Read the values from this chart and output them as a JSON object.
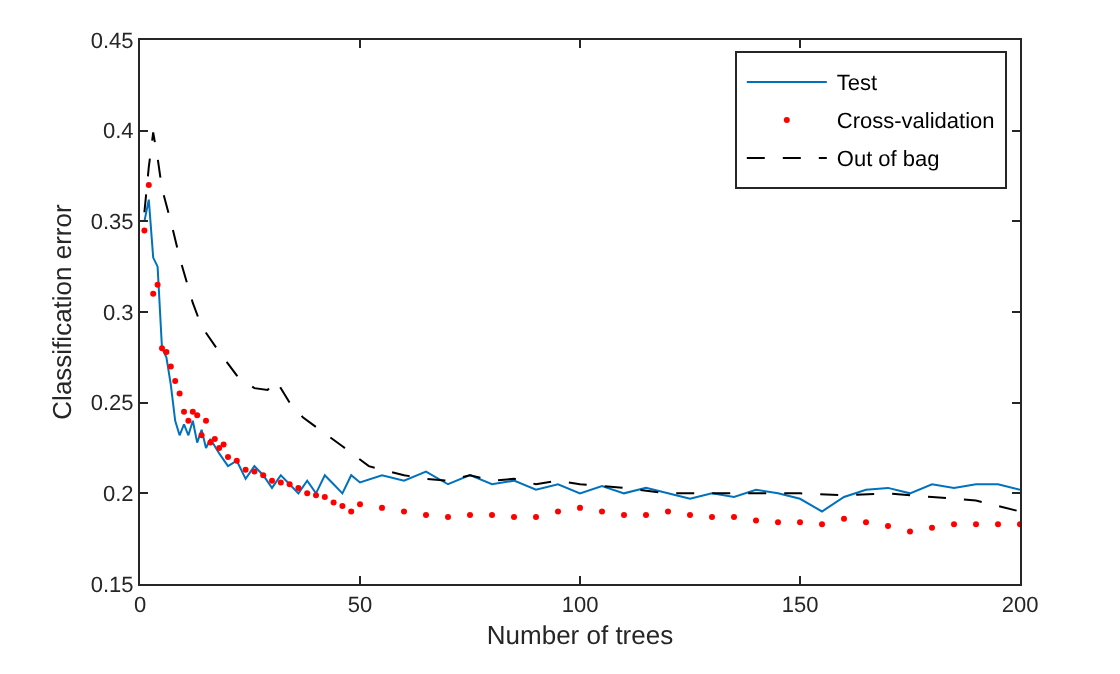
{
  "chart_data": {
    "type": "line",
    "xlabel": "Number of trees",
    "ylabel": "Classification error",
    "xlim": [
      0,
      200
    ],
    "xticks": [
      0,
      50,
      100,
      150,
      200
    ],
    "ylim": [
      0.15,
      0.45
    ],
    "yticks": [
      0.15,
      0.2,
      0.25,
      0.3,
      0.35,
      0.4,
      0.45
    ],
    "legend": "top right",
    "series": [
      {
        "name": "Test",
        "color": "#0072bd",
        "line_style": "solid",
        "marker": "none",
        "x": [
          1,
          2,
          3,
          4,
          5,
          6,
          7,
          8,
          9,
          10,
          11,
          12,
          13,
          14,
          15,
          16,
          18,
          20,
          22,
          24,
          26,
          28,
          30,
          32,
          34,
          36,
          38,
          40,
          42,
          44,
          46,
          48,
          50,
          55,
          60,
          65,
          70,
          75,
          80,
          85,
          90,
          95,
          100,
          105,
          110,
          115,
          120,
          125,
          130,
          135,
          140,
          145,
          150,
          155,
          160,
          165,
          170,
          175,
          180,
          185,
          190,
          195,
          200
        ],
        "values": [
          0.35,
          0.362,
          0.33,
          0.325,
          0.28,
          0.275,
          0.26,
          0.24,
          0.232,
          0.238,
          0.232,
          0.24,
          0.228,
          0.235,
          0.225,
          0.23,
          0.222,
          0.215,
          0.218,
          0.208,
          0.215,
          0.21,
          0.203,
          0.21,
          0.205,
          0.2,
          0.207,
          0.2,
          0.21,
          0.205,
          0.2,
          0.21,
          0.206,
          0.21,
          0.207,
          0.212,
          0.205,
          0.21,
          0.205,
          0.207,
          0.202,
          0.205,
          0.2,
          0.204,
          0.2,
          0.203,
          0.2,
          0.197,
          0.2,
          0.198,
          0.202,
          0.2,
          0.197,
          0.19,
          0.198,
          0.202,
          0.203,
          0.2,
          0.205,
          0.203,
          0.205,
          0.205,
          0.202
        ]
      },
      {
        "name": "Cross-validation",
        "color": "#ff0000",
        "type": "scatter",
        "marker": "circle",
        "x": [
          1,
          2,
          3,
          4,
          5,
          6,
          7,
          8,
          9,
          10,
          11,
          12,
          13,
          14,
          15,
          16,
          17,
          18,
          19,
          20,
          22,
          24,
          26,
          28,
          30,
          32,
          34,
          36,
          38,
          40,
          42,
          44,
          46,
          48,
          50,
          55,
          60,
          65,
          70,
          75,
          80,
          85,
          90,
          95,
          100,
          105,
          110,
          115,
          120,
          125,
          130,
          135,
          140,
          145,
          150,
          155,
          160,
          165,
          170,
          175,
          180,
          185,
          190,
          195,
          200
        ],
        "values": [
          0.345,
          0.37,
          0.31,
          0.315,
          0.28,
          0.278,
          0.27,
          0.262,
          0.255,
          0.245,
          0.24,
          0.245,
          0.243,
          0.232,
          0.24,
          0.228,
          0.23,
          0.225,
          0.227,
          0.22,
          0.218,
          0.213,
          0.212,
          0.21,
          0.207,
          0.206,
          0.205,
          0.203,
          0.2,
          0.199,
          0.198,
          0.195,
          0.193,
          0.19,
          0.194,
          0.192,
          0.19,
          0.188,
          0.187,
          0.188,
          0.188,
          0.187,
          0.187,
          0.19,
          0.192,
          0.19,
          0.188,
          0.188,
          0.19,
          0.188,
          0.187,
          0.187,
          0.185,
          0.184,
          0.184,
          0.183,
          0.186,
          0.184,
          0.182,
          0.179,
          0.181,
          0.183,
          0.183,
          0.183,
          0.183
        ]
      },
      {
        "name": "Out of bag",
        "color": "#000000",
        "line_style": "dashed",
        "marker": "none",
        "x": [
          1,
          2,
          3,
          4,
          5,
          7,
          9,
          12,
          14,
          18,
          22,
          26,
          29,
          31,
          34,
          37,
          42,
          46,
          52,
          55,
          60,
          65,
          70,
          75,
          80,
          85,
          90,
          95,
          100,
          110,
          120,
          130,
          140,
          150,
          160,
          170,
          180,
          190,
          200
        ],
        "values": [
          0.355,
          0.38,
          0.399,
          0.385,
          0.368,
          0.35,
          0.33,
          0.305,
          0.292,
          0.278,
          0.265,
          0.258,
          0.257,
          0.262,
          0.25,
          0.242,
          0.233,
          0.226,
          0.215,
          0.213,
          0.21,
          0.208,
          0.207,
          0.21,
          0.207,
          0.208,
          0.205,
          0.207,
          0.205,
          0.203,
          0.2,
          0.2,
          0.2,
          0.2,
          0.199,
          0.2,
          0.198,
          0.196,
          0.19
        ]
      }
    ]
  }
}
